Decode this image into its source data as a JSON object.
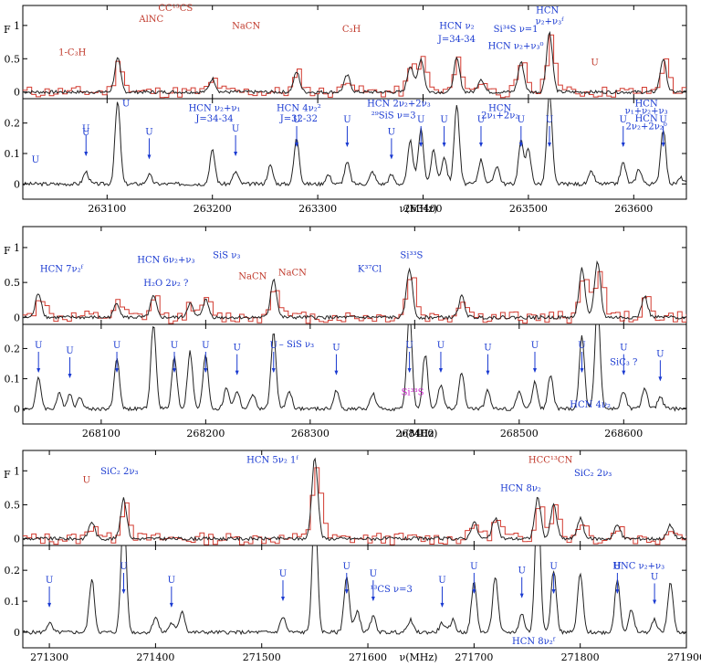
{
  "chart_data": [
    {
      "type": "line",
      "x_axis_title": "ν(MHz)",
      "xlim": [
        263020,
        263650
      ],
      "x_ticks": [
        263100,
        263200,
        263300,
        263400,
        263500,
        263600
      ],
      "top": {
        "ylabel": "F",
        "ylim": [
          -0.1,
          1.3
        ],
        "y_ticks": [
          0,
          0.5,
          1
        ],
        "labels": [
          {
            "text": "1-C₃H",
            "x": 263067,
            "y": 0.55,
            "color": "#c0392b"
          },
          {
            "text": "AlNC",
            "x": 263142,
            "y": 1.05,
            "color": "#c0392b"
          },
          {
            "text": "CC¹³CS",
            "x": 263165,
            "y": 1.22,
            "color": "#c0392b"
          },
          {
            "text": "NaCN",
            "x": 263232,
            "y": 0.95,
            "color": "#c0392b"
          },
          {
            "text": "C₃H",
            "x": 263332,
            "y": 0.9,
            "color": "#c0392b"
          },
          {
            "text": "HCN ν₂",
            "x": 263432,
            "y": 0.95,
            "color": "#1a3ad1"
          },
          {
            "text": "J=34-34",
            "x": 263432,
            "y": 0.75,
            "color": "#1a3ad1"
          },
          {
            "text": "Si³⁴S ν=1",
            "x": 263488,
            "y": 0.9,
            "color": "#1a3ad1"
          },
          {
            "text": "HCN",
            "x": 263518,
            "y": 1.18,
            "color": "#1a3ad1"
          },
          {
            "text": "ν₂+ν₃ᶠ",
            "x": 263520,
            "y": 1.02,
            "color": "#1a3ad1"
          },
          {
            "text": "HCN ν₂+ν₃⁰",
            "x": 263488,
            "y": 0.65,
            "color": "#1a3ad1"
          },
          {
            "text": "U",
            "x": 263563,
            "y": 0.4,
            "color": "#c0392b"
          }
        ]
      },
      "bottom": {
        "ylim": [
          -0.05,
          0.28
        ],
        "y_ticks": [
          0,
          0.1,
          0.2
        ],
        "labels": [
          {
            "text": "U",
            "x": 263032,
            "y": 0.07
          },
          {
            "text": "U",
            "x": 263080,
            "y": 0.16
          },
          {
            "text": "U",
            "x": 263118,
            "y": 0.255
          },
          {
            "text": "HCN ν₂+ν₁",
            "x": 263202,
            "y": 0.24
          },
          {
            "text": "J=34-34",
            "x": 263202,
            "y": 0.205
          },
          {
            "text": "HCN 4ν₂²",
            "x": 263282,
            "y": 0.24
          },
          {
            "text": "J=32-32",
            "x": 263282,
            "y": 0.205
          },
          {
            "text": "HCN 2ν₂+2ν₃",
            "x": 263377,
            "y": 0.255
          },
          {
            "text": "²⁹SiS ν=3",
            "x": 263372,
            "y": 0.215
          },
          {
            "text": "HCN",
            "x": 263473,
            "y": 0.24
          },
          {
            "text": "2ν₁+2ν₂",
            "x": 263473,
            "y": 0.215
          },
          {
            "text": "HCN",
            "x": 263612,
            "y": 0.255
          },
          {
            "text": "ν₁+ν₂+ν₃",
            "x": 263612,
            "y": 0.23
          },
          {
            "text": "HCN",
            "x": 263612,
            "y": 0.205
          },
          {
            "text": "2ν₂+2ν₂⁰",
            "x": 263612,
            "y": 0.18
          }
        ]
      }
    },
    {
      "type": "line",
      "x_axis_title": "ν(MHz)",
      "xlim": [
        268025,
        268660
      ],
      "x_ticks": [
        268100,
        268200,
        268300,
        268400,
        268500,
        268600
      ],
      "top": {
        "ylabel": "F",
        "ylim": [
          -0.1,
          1.3
        ],
        "y_ticks": [
          0,
          0.5,
          1
        ],
        "labels": [
          {
            "text": "HCN 7ν₂ᶠ",
            "x": 268062,
            "y": 0.65,
            "color": "#1a3ad1"
          },
          {
            "text": "HCN 6ν₂+ν₃",
            "x": 268162,
            "y": 0.78,
            "color": "#1a3ad1"
          },
          {
            "text": "SiS ν₃",
            "x": 268220,
            "y": 0.85,
            "color": "#1a3ad1"
          },
          {
            "text": "H₂O 2ν₂ ?",
            "x": 268162,
            "y": 0.45,
            "color": "#1a3ad1"
          },
          {
            "text": "NaCN",
            "x": 268245,
            "y": 0.55,
            "color": "#c0392b"
          },
          {
            "text": "NaCN",
            "x": 268283,
            "y": 0.6,
            "color": "#c0392b"
          },
          {
            "text": "K³⁷Cl",
            "x": 268357,
            "y": 0.65,
            "color": "#1a3ad1"
          },
          {
            "text": "Si³³S",
            "x": 268397,
            "y": 0.85,
            "color": "#1a3ad1"
          }
        ]
      },
      "bottom": {
        "ylim": [
          -0.05,
          0.28
        ],
        "y_ticks": [
          0,
          0.1,
          0.2
        ],
        "labels": [
          {
            "text": "– SiS ν₃",
            "x": 268287,
            "y": 0.205
          },
          {
            "text": "Si³³S",
            "x": 268398,
            "y": 0.045,
            "color": "#cc22cc"
          },
          {
            "text": "HCN 4ν₂",
            "x": 268568,
            "y": 0.005
          },
          {
            "text": "SiC₃ ?",
            "x": 268600,
            "y": 0.145
          }
        ]
      }
    },
    {
      "type": "line",
      "x_axis_title": "ν(MHz)",
      "xlim": [
        271275,
        271900
      ],
      "x_ticks": [
        271300,
        271400,
        271500,
        271600,
        271700,
        271800,
        271900
      ],
      "top": {
        "ylabel": "F",
        "ylim": [
          -0.1,
          1.3
        ],
        "y_ticks": [
          0,
          0.5,
          1
        ],
        "labels": [
          {
            "text": "SiC₂ 2ν₃",
            "x": 271366,
            "y": 0.95,
            "color": "#1a3ad1"
          },
          {
            "text": "U",
            "x": 271335,
            "y": 0.82,
            "color": "#c0392b"
          },
          {
            "text": "HCN 5ν₂ 1ᶠ",
            "x": 271510,
            "y": 1.12,
            "color": "#1a3ad1"
          },
          {
            "text": "HCC¹³CN",
            "x": 271772,
            "y": 1.12,
            "color": "#c0392b"
          },
          {
            "text": "HCN 8ν₂",
            "x": 271744,
            "y": 0.7,
            "color": "#1a3ad1"
          },
          {
            "text": "SiC₂ 2ν₃",
            "x": 271812,
            "y": 0.92,
            "color": "#1a3ad1"
          }
        ]
      },
      "bottom": {
        "ylim": [
          -0.05,
          0.28
        ],
        "y_ticks": [
          0,
          0.1,
          0.2
        ],
        "labels": [
          {
            "text": "¹³CS ν=3",
            "x": 271622,
            "y": 0.13
          },
          {
            "text": "HNC ν₂+ν₃",
            "x": 271855,
            "y": 0.205
          },
          {
            "text": "HCN 8ν₂ᶠ",
            "x": 271756,
            "y": -0.038
          }
        ]
      }
    }
  ]
}
